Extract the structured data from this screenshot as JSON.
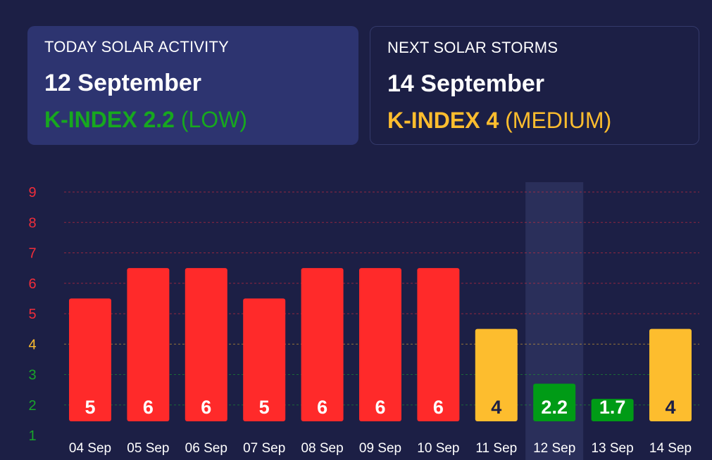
{
  "colors": {
    "background": "#1c1f45",
    "card_today": "#2d3470",
    "card_border": "#343a6b",
    "high": "#ff2a2a",
    "medium": "#fdbd2e",
    "low": "#009b16",
    "highlight_column": "#2a2f5a"
  },
  "today": {
    "heading": "TODAY SOLAR ACTIVITY",
    "date": "12 September",
    "kindex_label": "K-INDEX 2.2",
    "level": "(LOW)",
    "color": "#17a81f"
  },
  "next": {
    "heading": "NEXT SOLAR STORMS",
    "date": "14 September",
    "kindex_label": "K-INDEX 4",
    "level": "(MEDIUM)",
    "color": "#fdbd2e"
  },
  "chart_data": {
    "type": "bar",
    "categories": [
      "04 Sep",
      "05 Sep",
      "06 Sep",
      "07 Sep",
      "08 Sep",
      "09 Sep",
      "10 Sep",
      "11 Sep",
      "12 Sep",
      "13 Sep",
      "14 Sep"
    ],
    "values": [
      5,
      6,
      6,
      5,
      6,
      6,
      6,
      4,
      2.2,
      1.7,
      4
    ],
    "value_labels": [
      "5",
      "6",
      "6",
      "5",
      "6",
      "6",
      "6",
      "4",
      "2.2",
      "1.7",
      "4"
    ],
    "bar_levels": [
      "high",
      "high",
      "high",
      "high",
      "high",
      "high",
      "high",
      "medium",
      "low",
      "low",
      "medium"
    ],
    "highlight_category": "12 Sep",
    "ylim": [
      1,
      9
    ],
    "yticks": [
      "1",
      "2",
      "3",
      "4",
      "5",
      "6",
      "7",
      "8",
      "9"
    ],
    "ytick_colors": [
      "#19a62a",
      "#19a62a",
      "#19a62a",
      "#fdbd2e",
      "#f02d3a",
      "#f02d3a",
      "#f02d3a",
      "#f02d3a",
      "#f02d3a"
    ],
    "grid": true,
    "title": "",
    "xlabel": "",
    "ylabel": ""
  }
}
